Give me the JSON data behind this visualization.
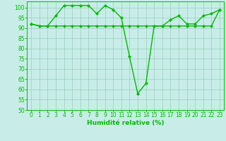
{
  "line1_x": [
    0,
    1,
    2,
    3,
    4,
    5,
    6,
    7,
    8,
    9,
    10,
    11,
    12,
    13,
    14,
    15,
    16,
    17,
    18,
    19,
    20,
    21,
    22,
    23
  ],
  "line1_y": [
    92,
    91,
    91,
    96,
    101,
    101,
    101,
    101,
    97,
    101,
    99,
    95,
    76,
    58,
    63,
    91,
    91,
    94,
    96,
    92,
    92,
    96,
    97,
    99
  ],
  "line2_x": [
    0,
    1,
    2,
    3,
    4,
    5,
    6,
    7,
    8,
    9,
    10,
    11,
    12,
    13,
    14,
    15,
    16,
    17,
    18,
    19,
    20,
    21,
    22,
    23
  ],
  "line2_y": [
    92,
    91,
    91,
    91,
    91,
    91,
    91,
    91,
    91,
    91,
    91,
    91,
    91,
    91,
    91,
    91,
    91,
    91,
    91,
    91,
    91,
    91,
    91,
    99
  ],
  "line_color": "#00bb00",
  "bg_color": "#c8ede8",
  "grid_color": "#99ccbb",
  "xlabel": "Humidité relative (%)",
  "xlim": [
    -0.5,
    23.5
  ],
  "ylim": [
    50,
    103
  ],
  "yticks": [
    50,
    55,
    60,
    65,
    70,
    75,
    80,
    85,
    90,
    95,
    100
  ],
  "xticks": [
    0,
    1,
    2,
    3,
    4,
    5,
    6,
    7,
    8,
    9,
    10,
    11,
    12,
    13,
    14,
    15,
    16,
    17,
    18,
    19,
    20,
    21,
    22,
    23
  ],
  "marker": "D",
  "markersize": 2.0,
  "linewidth": 1.0,
  "tick_fontsize": 5.5,
  "xlabel_fontsize": 6.5
}
